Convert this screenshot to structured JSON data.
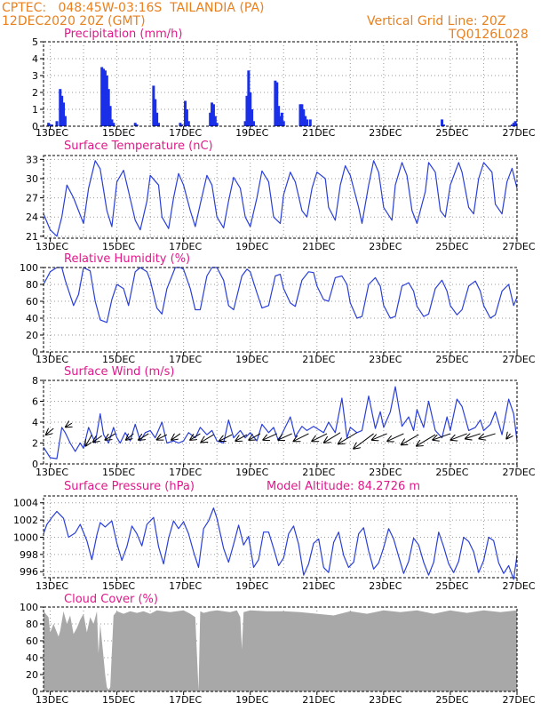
{
  "header": {
    "station": "CPTEC:   048:45W-03:16S  TAILANDIA (PA)",
    "run": "12DEC2020 20Z (GMT)",
    "grid_note": "Vertical Grid Line: 20Z",
    "model_code": "TQ0126L028"
  },
  "colors": {
    "line": "#2a3fd8",
    "bar": "#1a2fe8",
    "cloud": "#a8a8a8",
    "title": "#e0198a",
    "header": "#e8801f",
    "arrow": "#000000"
  },
  "x_axis": {
    "labels": [
      "13DEC",
      "15DEC",
      "17DEC",
      "19DEC",
      "21DEC",
      "23DEC",
      "25DEC",
      "27DEC"
    ],
    "day_range": [
      12.8,
      27.0
    ]
  },
  "chart_data": [
    {
      "id": "precip",
      "type": "bar",
      "title": "Precipitation (mm/h)",
      "ylim": [
        0,
        5
      ],
      "yticks": [
        0,
        1,
        2,
        3,
        4,
        5
      ],
      "x": [
        12.95,
        13.0,
        13.05,
        13.2,
        13.3,
        13.35,
        13.4,
        13.45,
        14.55,
        14.6,
        14.65,
        14.7,
        14.75,
        14.8,
        14.85,
        14.9,
        15.55,
        15.6,
        16.1,
        16.15,
        16.2,
        16.25,
        16.9,
        16.95,
        17.05,
        17.1,
        17.15,
        17.8,
        17.85,
        17.9,
        17.95,
        18.0,
        18.85,
        18.9,
        18.95,
        19.0,
        19.05,
        19.1,
        19.75,
        19.8,
        19.85,
        19.9,
        19.95,
        20.0,
        20.5,
        20.55,
        20.6,
        20.65,
        20.7,
        20.8,
        24.75,
        24.8,
        26.85,
        26.9,
        26.95
      ],
      "values": [
        0.2,
        0.1,
        0.1,
        0.3,
        2.2,
        1.8,
        1.4,
        0.6,
        3.5,
        3.4,
        3.3,
        3.0,
        2.2,
        1.2,
        0.4,
        0.2,
        0.2,
        0.1,
        2.4,
        1.6,
        0.8,
        0.2,
        0.2,
        0.1,
        1.5,
        1.0,
        0.3,
        0.8,
        1.4,
        1.3,
        0.6,
        0.2,
        0.3,
        1.8,
        3.3,
        2.0,
        1.0,
        0.3,
        2.7,
        2.6,
        1.2,
        0.6,
        0.8,
        0.3,
        1.3,
        1.3,
        1.0,
        0.6,
        0.4,
        0.4,
        0.4,
        0.1,
        0.1,
        0.2,
        0.3
      ]
    },
    {
      "id": "temp",
      "type": "line",
      "title": "Surface Temperature (nC)",
      "ylim": [
        20.7,
        33.6
      ],
      "yticks": [
        21,
        24,
        27,
        30,
        33
      ],
      "x": [
        12.8,
        13.0,
        13.2,
        13.35,
        13.5,
        13.7,
        13.85,
        14.0,
        14.15,
        14.35,
        14.5,
        14.7,
        14.85,
        15.0,
        15.2,
        15.35,
        15.55,
        15.7,
        15.9,
        16.0,
        16.25,
        16.35,
        16.55,
        16.7,
        16.85,
        17.0,
        17.2,
        17.35,
        17.5,
        17.7,
        17.85,
        18.0,
        18.2,
        18.35,
        18.5,
        18.7,
        18.85,
        19.0,
        19.2,
        19.35,
        19.55,
        19.7,
        19.9,
        20.0,
        20.2,
        20.35,
        20.55,
        20.7,
        20.85,
        21.0,
        21.25,
        21.35,
        21.55,
        21.7,
        21.85,
        22.0,
        22.25,
        22.35,
        22.55,
        22.7,
        22.85,
        23.0,
        23.25,
        23.35,
        23.55,
        23.7,
        23.85,
        24.0,
        24.25,
        24.35,
        24.55,
        24.7,
        24.85,
        25.0,
        25.25,
        25.35,
        25.55,
        25.7,
        25.85,
        26.0,
        26.25,
        26.35,
        26.55,
        26.7,
        26.85,
        27.0
      ],
      "values": [
        24.5,
        22.0,
        21.0,
        24.0,
        29.0,
        27.0,
        25.0,
        23.0,
        28.5,
        32.8,
        31.5,
        25.0,
        22.5,
        29.5,
        31.3,
        28.0,
        23.5,
        22.0,
        26.5,
        30.5,
        29.0,
        24.0,
        22.2,
        27.0,
        30.8,
        29.0,
        25.0,
        22.5,
        26.0,
        30.5,
        29.0,
        24.0,
        22.3,
        26.5,
        30.2,
        28.5,
        24.0,
        22.5,
        27.0,
        31.2,
        29.5,
        24.0,
        23.0,
        27.5,
        31.0,
        29.5,
        25.0,
        24.0,
        28.5,
        31.0,
        30.0,
        25.5,
        23.5,
        29.0,
        32.0,
        30.5,
        25.5,
        23.0,
        29.0,
        32.8,
        31.0,
        25.5,
        23.5,
        29.0,
        32.5,
        30.5,
        25.0,
        23.0,
        28.0,
        32.5,
        31.0,
        25.0,
        24.0,
        29.0,
        32.5,
        31.0,
        25.5,
        24.5,
        30.0,
        32.5,
        31.0,
        26.0,
        24.5,
        29.5,
        31.6,
        28.5
      ]
    },
    {
      "id": "rh",
      "type": "line",
      "title": "Relative Humidity (%)",
      "ylim": [
        0,
        100
      ],
      "yticks": [
        0,
        20,
        40,
        60,
        80,
        100
      ],
      "x": [
        12.8,
        13.0,
        13.2,
        13.35,
        13.45,
        13.7,
        13.85,
        14.0,
        14.2,
        14.35,
        14.5,
        14.7,
        14.85,
        15.0,
        15.2,
        15.35,
        15.55,
        15.7,
        15.9,
        16.0,
        16.2,
        16.35,
        16.5,
        16.75,
        16.9,
        17.0,
        17.2,
        17.35,
        17.5,
        17.7,
        17.85,
        18.0,
        18.2,
        18.35,
        18.5,
        18.75,
        18.9,
        19.0,
        19.2,
        19.35,
        19.55,
        19.75,
        19.9,
        20.0,
        20.2,
        20.35,
        20.55,
        20.75,
        20.9,
        21.0,
        21.2,
        21.35,
        21.55,
        21.75,
        21.9,
        22.0,
        22.2,
        22.35,
        22.55,
        22.75,
        22.9,
        23.0,
        23.2,
        23.35,
        23.55,
        23.75,
        23.9,
        24.0,
        24.2,
        24.35,
        24.55,
        24.75,
        24.9,
        25.0,
        25.2,
        25.35,
        25.55,
        25.75,
        25.9,
        26.0,
        26.2,
        26.35,
        26.55,
        26.75,
        26.9,
        27.0
      ],
      "values": [
        80,
        95,
        100,
        100,
        85,
        55,
        68,
        100,
        96,
        60,
        38,
        35,
        62,
        80,
        75,
        55,
        95,
        100,
        95,
        85,
        52,
        45,
        75,
        100,
        100,
        98,
        75,
        50,
        50,
        90,
        100,
        100,
        85,
        55,
        50,
        90,
        98,
        95,
        70,
        52,
        55,
        90,
        92,
        75,
        58,
        54,
        85,
        95,
        94,
        78,
        62,
        60,
        88,
        90,
        80,
        58,
        40,
        42,
        80,
        88,
        78,
        55,
        40,
        42,
        78,
        82,
        72,
        54,
        42,
        45,
        75,
        85,
        72,
        55,
        44,
        50,
        78,
        84,
        72,
        55,
        40,
        44,
        72,
        80,
        55,
        65
      ]
    },
    {
      "id": "wind",
      "type": "line",
      "title": "Surface Wind (m/s)",
      "ylim": [
        0,
        8
      ],
      "yticks": [
        0,
        2,
        4,
        6,
        8
      ],
      "x": [
        12.8,
        13.0,
        13.2,
        13.35,
        13.45,
        13.6,
        13.75,
        13.9,
        14.0,
        14.15,
        14.35,
        14.5,
        14.6,
        14.75,
        14.9,
        15.0,
        15.1,
        15.25,
        15.4,
        15.55,
        15.7,
        15.85,
        16.0,
        16.15,
        16.35,
        16.5,
        16.7,
        16.85,
        17.0,
        17.15,
        17.35,
        17.5,
        17.7,
        17.85,
        18.0,
        18.2,
        18.35,
        18.5,
        18.7,
        18.85,
        19.0,
        19.2,
        19.35,
        19.55,
        19.7,
        19.85,
        20.0,
        20.2,
        20.35,
        20.55,
        20.7,
        20.9,
        21.0,
        21.2,
        21.35,
        21.55,
        21.75,
        21.9,
        22.0,
        22.2,
        22.35,
        22.55,
        22.75,
        22.9,
        23.0,
        23.2,
        23.35,
        23.55,
        23.75,
        23.9,
        24.0,
        24.2,
        24.35,
        24.55,
        24.75,
        24.9,
        25.0,
        25.2,
        25.35,
        25.55,
        25.75,
        25.9,
        26.0,
        26.2,
        26.35,
        26.55,
        26.75,
        26.9,
        27.0
      ],
      "values": [
        1.6,
        0.6,
        0.5,
        3.5,
        3.0,
        2.0,
        1.2,
        2.0,
        1.5,
        3.5,
        2.0,
        4.8,
        2.8,
        2.0,
        3.5,
        2.5,
        2.0,
        3.0,
        2.2,
        3.8,
        2.2,
        3.0,
        3.2,
        2.5,
        4.0,
        2.0,
        2.2,
        2.0,
        2.2,
        3.0,
        2.5,
        3.5,
        2.8,
        3.2,
        2.2,
        2.0,
        4.2,
        2.5,
        3.2,
        2.5,
        3.0,
        2.2,
        3.8,
        3.0,
        3.5,
        2.2,
        3.2,
        4.5,
        2.6,
        3.6,
        3.2,
        3.6,
        3.4,
        3.0,
        4.0,
        3.0,
        6.3,
        2.5,
        3.5,
        3.0,
        3.2,
        6.5,
        3.4,
        5.0,
        3.5,
        5.0,
        7.4,
        3.6,
        4.5,
        3.2,
        5.2,
        3.5,
        6.0,
        3.2,
        2.5,
        4.5,
        3.2,
        6.2,
        5.5,
        3.2,
        3.5,
        4.2,
        3.2,
        3.8,
        5.0,
        2.8,
        6.2,
        4.8,
        2.2
      ],
      "vectors": {
        "x": [
          13.1,
          13.65,
          14.25,
          14.55,
          14.95,
          15.5,
          15.95,
          16.5,
          16.9,
          17.5,
          17.9,
          18.45,
          18.9,
          19.3,
          19.8,
          20.25,
          20.75,
          21.3,
          21.7,
          22.2,
          22.7,
          23.1,
          23.6,
          24.05,
          24.55,
          25.0,
          25.5,
          25.9,
          26.35,
          26.8
        ],
        "y": [
          3.4,
          3.9,
          2.8,
          2.7,
          2.9,
          2.9,
          2.9,
          2.8,
          2.9,
          2.9,
          2.8,
          2.8,
          2.8,
          2.9,
          2.9,
          2.9,
          2.9,
          2.9,
          3.0,
          3.0,
          2.9,
          2.9,
          2.9,
          2.8,
          2.8,
          2.9,
          2.9,
          2.9,
          2.9,
          2.9
        ],
        "u": [
          -0.6,
          -0.5,
          -0.5,
          -0.7,
          -0.8,
          -0.6,
          -0.8,
          -0.8,
          -0.7,
          -0.8,
          -1.0,
          -1.0,
          -0.9,
          -0.9,
          -1.1,
          -1.1,
          -1.2,
          -1.2,
          -1.3,
          -1.5,
          -1.6,
          -1.2,
          -1.3,
          -1.4,
          -1.5,
          -1.4,
          -1.3,
          -1.2,
          -1.3,
          -0.3
        ],
        "v": [
          -0.5,
          -0.3,
          -0.9,
          -0.5,
          -0.5,
          -0.5,
          -0.5,
          -0.4,
          -0.5,
          -0.5,
          -0.6,
          -0.5,
          -0.5,
          -0.5,
          -0.5,
          -0.5,
          -0.6,
          -0.6,
          -0.8,
          -0.9,
          -1.2,
          -0.5,
          -0.6,
          -0.8,
          -0.9,
          -0.5,
          -0.5,
          -0.4,
          -0.4,
          -0.4
        ]
      }
    },
    {
      "id": "pres",
      "type": "line",
      "title": "Surface Pressure (hPa)",
      "annotation": "Model Altitude: 84.2726 m",
      "ylim": [
        995.3,
        1004.8
      ],
      "yticks": [
        996,
        998,
        1000,
        1002,
        1004
      ],
      "x": [
        12.8,
        12.9,
        13.05,
        13.2,
        13.4,
        13.55,
        13.75,
        13.9,
        14.1,
        14.25,
        14.4,
        14.5,
        14.65,
        14.85,
        15.0,
        15.15,
        15.3,
        15.45,
        15.6,
        15.75,
        15.9,
        16.1,
        16.25,
        16.4,
        16.55,
        16.7,
        16.85,
        17.0,
        17.15,
        17.3,
        17.45,
        17.6,
        17.75,
        17.9,
        18.0,
        18.2,
        18.35,
        18.5,
        18.65,
        18.8,
        18.95,
        19.1,
        19.25,
        19.4,
        19.55,
        19.7,
        19.85,
        20.0,
        20.15,
        20.3,
        20.45,
        20.6,
        20.75,
        20.9,
        21.05,
        21.2,
        21.35,
        21.5,
        21.65,
        21.8,
        21.95,
        22.1,
        22.25,
        22.4,
        22.55,
        22.7,
        22.85,
        23.0,
        23.15,
        23.3,
        23.45,
        23.6,
        23.75,
        23.9,
        24.05,
        24.2,
        24.35,
        24.5,
        24.65,
        24.8,
        24.95,
        25.1,
        25.25,
        25.4,
        25.55,
        25.7,
        25.85,
        26.0,
        26.15,
        26.3,
        26.45,
        26.6,
        26.75,
        26.9,
        27.0
      ],
      "values": [
        1000.4,
        1001.5,
        1002.3,
        1003.0,
        1002.2,
        1000.0,
        1000.5,
        1001.5,
        999.6,
        997.4,
        1000.3,
        1001.7,
        1001.2,
        1001.9,
        999.3,
        997.3,
        998.9,
        1001.3,
        1000.4,
        999.0,
        1001.5,
        1002.3,
        998.9,
        996.9,
        999.9,
        1001.9,
        1001.0,
        1001.8,
        1000.4,
        998.3,
        996.5,
        1001.0,
        1001.9,
        1003.4,
        1002.2,
        998.7,
        997.1,
        999.2,
        1001.4,
        999.1,
        1000.1,
        996.5,
        997.4,
        1000.6,
        1000.6,
        998.7,
        996.7,
        997.6,
        1000.4,
        1001.3,
        999.2,
        995.6,
        996.9,
        999.3,
        999.8,
        996.5,
        995.9,
        999.4,
        1000.6,
        997.9,
        996.5,
        997.1,
        1000.4,
        1001.1,
        998.4,
        996.3,
        997.0,
        998.8,
        1001.0,
        999.8,
        997.8,
        995.8,
        997.2,
        999.9,
        999.1,
        997.1,
        995.6,
        997.1,
        1000.6,
        998.9,
        996.9,
        995.9,
        997.2,
        1000.0,
        999.5,
        998.3,
        995.9,
        997.3,
        1000.0,
        999.6,
        997.0,
        995.8,
        996.7,
        995.1,
        997.9
      ]
    },
    {
      "id": "cloud",
      "type": "area",
      "title": "Cloud Cover (%)",
      "ylim": [
        0,
        100
      ],
      "yticks": [
        0,
        20,
        40,
        60,
        80,
        100
      ],
      "x": [
        12.8,
        12.95,
        13.0,
        13.1,
        13.15,
        13.25,
        13.3,
        13.4,
        13.5,
        13.6,
        13.7,
        13.8,
        13.9,
        14.0,
        14.1,
        14.2,
        14.3,
        14.4,
        14.45,
        14.5,
        14.55,
        14.6,
        14.65,
        14.7,
        14.75,
        14.8,
        14.9,
        15.0,
        15.2,
        15.4,
        15.6,
        15.8,
        16.0,
        16.2,
        16.4,
        16.6,
        16.8,
        17.0,
        17.2,
        17.35,
        17.45,
        17.5,
        17.6,
        17.8,
        18.0,
        18.2,
        18.4,
        18.6,
        18.7,
        18.75,
        18.8,
        19.0,
        19.5,
        20.0,
        20.5,
        21.0,
        21.5,
        22.0,
        22.5,
        23.0,
        23.5,
        24.0,
        24.5,
        25.0,
        25.5,
        26.0,
        26.5,
        27.0
      ],
      "values": [
        95,
        88,
        70,
        80,
        75,
        65,
        72,
        95,
        80,
        90,
        68,
        75,
        85,
        92,
        70,
        88,
        80,
        95,
        45,
        80,
        60,
        40,
        20,
        5,
        2,
        5,
        90,
        95,
        92,
        95,
        93,
        95,
        92,
        96,
        95,
        94,
        95,
        96,
        92,
        88,
        1,
        95,
        93,
        95,
        96,
        95,
        94,
        96,
        88,
        50,
        94,
        96,
        95,
        95,
        94,
        92,
        90,
        95,
        92,
        96,
        94,
        96,
        92,
        96,
        93,
        96,
        94,
        96
      ]
    }
  ]
}
